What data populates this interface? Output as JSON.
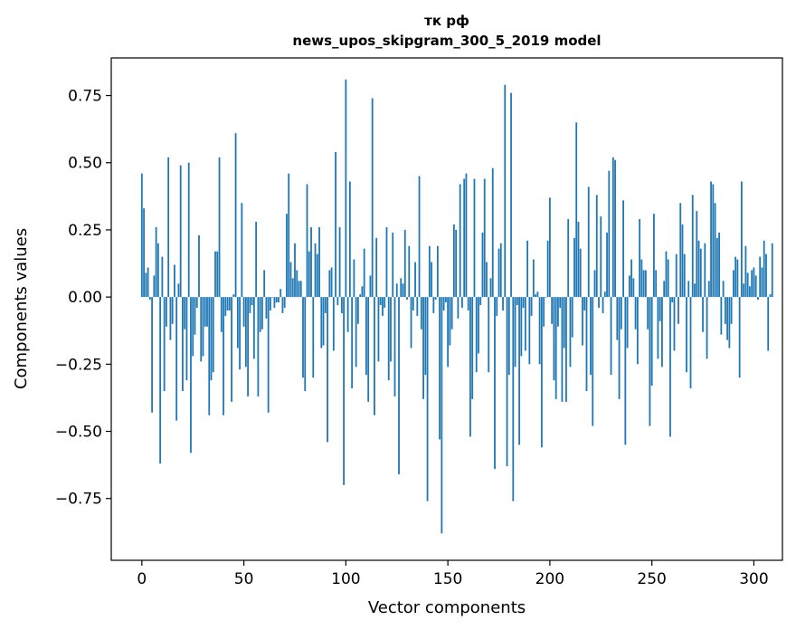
{
  "chart_data": {
    "type": "bar",
    "title": "тк рф",
    "subtitle": "news_upos_skipgram_300_5_2019 model",
    "xlabel": "Vector components",
    "ylabel": "Components values",
    "xlim": [
      -15,
      314
    ],
    "ylim": [
      -0.98,
      0.89
    ],
    "xticks": [
      0,
      50,
      100,
      150,
      200,
      250,
      300
    ],
    "xtick_labels": [
      "0",
      "50",
      "100",
      "150",
      "200",
      "250",
      "300"
    ],
    "yticks": [
      -0.75,
      -0.5,
      -0.25,
      0.0,
      0.25,
      0.5,
      0.75
    ],
    "ytick_labels": [
      "−0.75",
      "−0.50",
      "−0.25",
      "0.00",
      "0.25",
      "0.50",
      "0.75"
    ],
    "grid": false,
    "legend": "none",
    "bar_color": "#1f77b4",
    "values": [
      0.46,
      0.33,
      0.09,
      0.11,
      -0.01,
      -0.43,
      0.08,
      0.26,
      0.2,
      -0.62,
      0.15,
      -0.35,
      -0.11,
      0.52,
      -0.16,
      -0.1,
      0.12,
      -0.46,
      0.05,
      0.49,
      -0.35,
      -0.12,
      -0.31,
      0.5,
      -0.58,
      -0.22,
      -0.14,
      -0.04,
      0.23,
      -0.24,
      -0.22,
      -0.11,
      -0.11,
      -0.44,
      -0.31,
      -0.28,
      0.17,
      0.17,
      0.52,
      -0.13,
      -0.44,
      -0.07,
      -0.05,
      -0.05,
      -0.39,
      0.01,
      0.61,
      -0.19,
      -0.27,
      0.35,
      -0.11,
      -0.26,
      -0.37,
      -0.06,
      -0.03,
      -0.23,
      0.28,
      -0.37,
      -0.13,
      -0.12,
      0.1,
      -0.08,
      -0.43,
      -0.05,
      0.0,
      -0.04,
      -0.02,
      -0.02,
      0.03,
      -0.06,
      -0.04,
      0.31,
      0.46,
      0.13,
      0.07,
      0.2,
      0.1,
      0.06,
      0.06,
      -0.3,
      -0.35,
      0.42,
      0.17,
      0.26,
      -0.3,
      0.2,
      0.16,
      0.26,
      -0.19,
      -0.18,
      -0.06,
      -0.54,
      0.1,
      0.11,
      -0.2,
      0.54,
      -0.03,
      0.26,
      -0.06,
      -0.7,
      0.81,
      -0.13,
      0.43,
      -0.34,
      0.14,
      -0.26,
      -0.1,
      0.01,
      0.04,
      0.18,
      -0.29,
      -0.39,
      0.08,
      0.74,
      -0.44,
      0.22,
      -0.24,
      -0.03,
      -0.07,
      -0.04,
      0.26,
      -0.31,
      -0.24,
      0.24,
      -0.37,
      0.05,
      -0.66,
      0.07,
      0.05,
      0.25,
      -0.01,
      0.19,
      -0.19,
      -0.05,
      0.13,
      -0.07,
      0.45,
      -0.12,
      -0.38,
      -0.29,
      -0.76,
      0.19,
      0.13,
      -0.06,
      -0.01,
      0.19,
      -0.53,
      -0.88,
      -0.05,
      -0.02,
      -0.26,
      -0.18,
      -0.12,
      0.27,
      0.25,
      -0.08,
      0.42,
      -0.04,
      0.44,
      0.46,
      -0.05,
      -0.52,
      -0.38,
      0.44,
      -0.28,
      -0.21,
      -0.03,
      0.24,
      0.44,
      0.13,
      -0.28,
      0.07,
      0.48,
      -0.64,
      -0.07,
      0.18,
      0.2,
      -0.05,
      0.79,
      -0.63,
      -0.29,
      0.76,
      -0.76,
      -0.26,
      -0.03,
      -0.55,
      -0.22,
      -0.04,
      -0.2,
      0.21,
      -0.25,
      -0.07,
      0.14,
      0.01,
      0.02,
      -0.25,
      -0.56,
      -0.11,
      0.0,
      0.21,
      0.37,
      -0.1,
      -0.31,
      -0.38,
      -0.11,
      -0.04,
      -0.39,
      -0.19,
      -0.39,
      0.29,
      -0.26,
      -0.15,
      0.22,
      0.65,
      0.28,
      0.18,
      -0.18,
      -0.05,
      -0.35,
      0.41,
      -0.29,
      -0.48,
      0.1,
      0.38,
      -0.04,
      0.3,
      -0.06,
      0.02,
      0.24,
      0.47,
      -0.29,
      0.52,
      0.51,
      -0.16,
      -0.38,
      -0.12,
      0.36,
      -0.55,
      -0.19,
      0.08,
      0.14,
      0.07,
      -0.12,
      -0.25,
      0.29,
      0.14,
      0.1,
      0.1,
      -0.12,
      -0.48,
      -0.33,
      0.31,
      0.1,
      -0.23,
      -0.09,
      -0.26,
      0.06,
      0.17,
      0.14,
      -0.52,
      -0.02,
      -0.2,
      0.16,
      -0.1,
      0.35,
      0.27,
      0.16,
      -0.28,
      0.06,
      -0.34,
      0.38,
      0.05,
      0.32,
      0.21,
      0.18,
      -0.13,
      0.2,
      -0.23,
      0.06,
      0.43,
      0.42,
      0.35,
      0.22,
      0.24,
      -0.14,
      0.06,
      -0.1,
      -0.16,
      -0.19,
      -0.1,
      0.1,
      0.15,
      0.14,
      -0.3,
      0.43,
      0.05,
      0.19,
      0.09,
      0.04,
      0.1,
      0.11,
      0.08,
      -0.01,
      0.15,
      0.11,
      0.21,
      0.16,
      -0.2,
      0.01,
      0.2
    ]
  }
}
